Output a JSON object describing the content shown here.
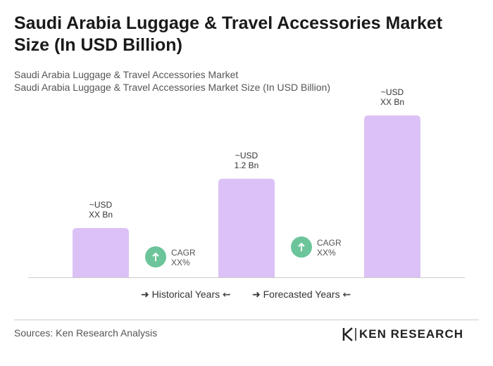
{
  "chart_data": {
    "type": "bar",
    "title": "Saudi Arabia Luggage & Travel Accessories Market Size (In USD Billion)",
    "subtitle": [
      "Saudi Arabia Luggage & Travel Accessories Market",
      "Saudi Arabia Luggage & Travel Accessories Market Size (In USD Billion)"
    ],
    "categories": [
      null,
      null,
      null
    ],
    "values": [
      0.6,
      1.2,
      1.97
    ],
    "value_labels": [
      "~USD\nXX Bn",
      "~USD\n1.2 Bn",
      "~USD\nXX Bn"
    ],
    "color": "#dcc1f6",
    "annotations": [
      "CAGR\nXX%",
      "CAGR\nXX%"
    ],
    "legend": [
      "Historical Years",
      "Forecasted Years"
    ],
    "source": "Sources: Ken Research Analysis",
    "logo": "KEN RESEARCH"
  }
}
